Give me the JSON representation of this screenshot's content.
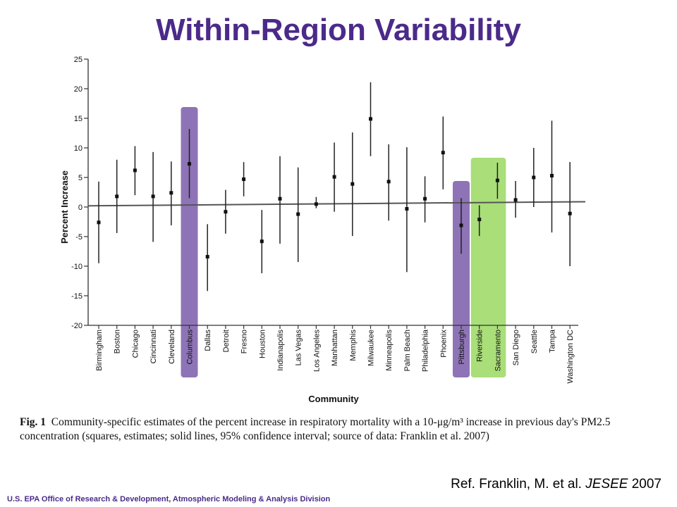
{
  "slide": {
    "title": "Within-Region Variability",
    "caption_fig": "Fig. 1",
    "caption_text": "Community-specific estimates of the percent increase in respiratory mortality with a 10-μg/m³ increase in previous day's PM2.5 concentration (squares, estimates; solid lines, 95% confidence interval; source of data: Franklin et al. 2007)",
    "reference_prefix": "Ref.  Franklin, M. et al.",
    "reference_journal": "JESEE",
    "reference_year": "2007",
    "footer": "U.S. EPA Office of Research & Development, Atmospheric Modeling & Analysis Division"
  },
  "chart_data": {
    "type": "scatter",
    "ylabel": "Percent Increase",
    "xlabel": "Community",
    "ylim": [
      -20,
      25
    ],
    "yticks": [
      25,
      20,
      15,
      10,
      5,
      0,
      -5,
      -10,
      -15,
      -20
    ],
    "categories": [
      "Birmingham",
      "Boston",
      "Chicago",
      "Cincinnati",
      "Cleveland",
      "Columbus",
      "Dallas",
      "Detroit",
      "Fresno",
      "Houston",
      "Indianapolis",
      "Las Vegas",
      "Los Angeles",
      "Manhattan",
      "Memphis",
      "Milwaukee",
      "Minneapolis",
      "Palm Beach",
      "Philadelphia",
      "Phoenix",
      "Pittsburgh",
      "Riverside",
      "Sacramento",
      "San Diego",
      "Seattle",
      "Tampa",
      "Washington DC"
    ],
    "estimates": [
      -2.6,
      1.8,
      6.2,
      1.8,
      2.4,
      7.3,
      -8.4,
      -0.8,
      4.7,
      -5.8,
      1.4,
      -1.2,
      0.5,
      5.1,
      3.9,
      14.9,
      4.3,
      -0.3,
      1.4,
      9.2,
      -3.1,
      -2.1,
      4.5,
      1.2,
      5.0,
      5.3,
      -1.1
    ],
    "lower": [
      -9.5,
      -4.4,
      2.0,
      -5.9,
      -3.1,
      1.5,
      -14.2,
      -4.5,
      1.8,
      -11.2,
      -6.2,
      -9.3,
      -0.2,
      -0.8,
      -4.9,
      8.6,
      -2.3,
      -11.0,
      -2.6,
      3.0,
      -7.9,
      -4.9,
      1.4,
      -1.8,
      0.0,
      -4.3,
      -10.0
    ],
    "upper": [
      4.3,
      8.0,
      10.3,
      9.3,
      7.7,
      13.2,
      -2.9,
      2.9,
      7.6,
      -0.5,
      8.6,
      6.7,
      1.7,
      10.9,
      12.6,
      21.1,
      10.6,
      10.1,
      5.2,
      15.3,
      1.5,
      0.3,
      7.5,
      4.4,
      10.0,
      14.6,
      7.6
    ],
    "trend": {
      "start": 0.2,
      "end": 0.9
    },
    "highlights": {
      "Columbus": "#8e74b6",
      "Pittsburgh": "#8e74b6",
      "Riverside": "#a9de79",
      "Sacramento": "#a9de79"
    }
  }
}
